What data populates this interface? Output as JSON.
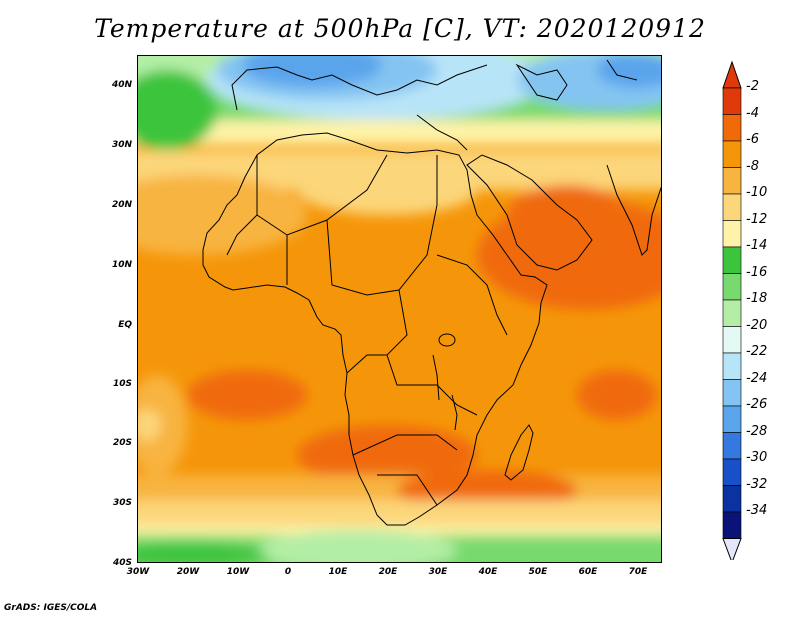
{
  "title": "Temperature at 500hPa [C], VT: 2020120912",
  "credit": "GrADS: IGES/COLA",
  "map": {
    "region": "Africa",
    "lat_labels": [
      "40N",
      "30N",
      "20N",
      "10N",
      "EQ",
      "10S",
      "20S",
      "30S",
      "40S"
    ],
    "lon_labels": [
      "30W",
      "20W",
      "10W",
      "0",
      "10E",
      "20E",
      "30E",
      "40E",
      "50E",
      "60E",
      "70E"
    ],
    "lat_range": [
      -40,
      45
    ],
    "lon_range": [
      -30,
      75
    ]
  },
  "colorbar": {
    "labels": [
      "-2",
      "-4",
      "-6",
      "-8",
      "-10",
      "-12",
      "-14",
      "-16",
      "-18",
      "-20",
      "-22",
      "-24",
      "-26",
      "-28",
      "-30",
      "-32",
      "-34"
    ],
    "colors": [
      "#e03a0a",
      "#f06a0a",
      "#f5960a",
      "#f8b440",
      "#fcd67a",
      "#fef3a8",
      "#3cc43c",
      "#78da6e",
      "#b4eea6",
      "#e4f8f4",
      "#b8e4f8",
      "#84c4f2",
      "#5aa4ec",
      "#3478e0",
      "#1850c8",
      "#0a32a0",
      "#0a1478"
    ],
    "over_color": "#e03a0a",
    "under_color": "#e6e6fa"
  },
  "legend_colors": {
    "land_border": "#000000"
  }
}
